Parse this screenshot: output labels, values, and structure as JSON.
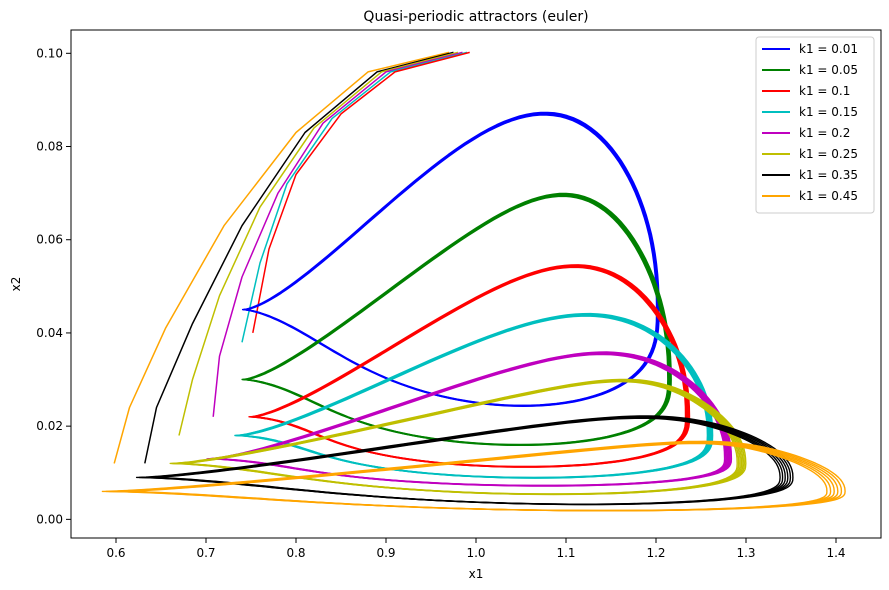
{
  "chart_data": {
    "type": "line",
    "title": "Quasi-periodic attractors (euler)",
    "xlabel": "x1",
    "ylabel": "x2",
    "xlim": [
      0.55,
      1.45
    ],
    "ylim": [
      -0.004,
      0.105
    ],
    "xticks": [
      0.6,
      0.7,
      0.8,
      0.9,
      1.0,
      1.1,
      1.2,
      1.3,
      1.4
    ],
    "xtick_labels": [
      "0.6",
      "0.7",
      "0.8",
      "0.9",
      "1.0",
      "1.1",
      "1.2",
      "1.3",
      "1.4"
    ],
    "yticks": [
      0.0,
      0.02,
      0.04,
      0.06,
      0.08,
      0.1
    ],
    "ytick_labels": [
      "0.00",
      "0.02",
      "0.04",
      "0.06",
      "0.08",
      "0.10"
    ],
    "grid": false,
    "legend": "top-right",
    "series": [
      {
        "name": "k1 = 0.01",
        "color": "#0000ff",
        "k": 0.01,
        "xmin": 0.742,
        "xmax": 1.202,
        "ymin": 0.02,
        "ymax": 0.097,
        "xtop": 0.985,
        "xbot": 0.94,
        "ytip": 0.045,
        "loops": 6,
        "spread": 0.012
      },
      {
        "name": "k1 = 0.05",
        "color": "#008000",
        "k": 0.05,
        "xmin": 0.742,
        "xmax": 1.215,
        "ymin": 0.013,
        "ymax": 0.079,
        "xtop": 1.005,
        "xbot": 0.93,
        "ytip": 0.03,
        "loops": 6,
        "spread": 0.016
      },
      {
        "name": "k1 = 0.1",
        "color": "#ff0000",
        "k": 0.1,
        "xmin": 0.75,
        "xmax": 1.235,
        "ymin": 0.009,
        "ymax": 0.062,
        "xtop": 1.015,
        "xbot": 0.93,
        "ytip": 0.022,
        "loops": 7,
        "spread": 0.018
      },
      {
        "name": "k1 = 0.15",
        "color": "#00bfbf",
        "k": 0.15,
        "xmin": 0.735,
        "xmax": 1.26,
        "ymin": 0.007,
        "ymax": 0.05,
        "xtop": 1.02,
        "xbot": 0.93,
        "ytip": 0.018,
        "loops": 7,
        "spread": 0.022
      },
      {
        "name": "k1 = 0.2",
        "color": "#bf00bf",
        "k": 0.2,
        "xmin": 0.705,
        "xmax": 1.28,
        "ymin": 0.006,
        "ymax": 0.041,
        "xtop": 1.03,
        "xbot": 0.93,
        "ytip": 0.013,
        "loops": 7,
        "spread": 0.026
      },
      {
        "name": "k1 = 0.25",
        "color": "#bfbf00",
        "k": 0.25,
        "xmin": 0.665,
        "xmax": 1.295,
        "ymin": 0.004,
        "ymax": 0.034,
        "xtop": 1.045,
        "xbot": 0.93,
        "ytip": 0.012,
        "loops": 7,
        "spread": 0.03
      },
      {
        "name": "k1 = 0.35",
        "color": "#000000",
        "k": 0.35,
        "xmin": 0.63,
        "xmax": 1.345,
        "ymin": 0.002,
        "ymax": 0.025,
        "xtop": 1.05,
        "xbot": 0.95,
        "ytip": 0.009,
        "loops": 6,
        "spread": 0.04
      },
      {
        "name": "k1 = 0.45",
        "color": "#ffa500",
        "k": 0.45,
        "xmin": 0.595,
        "xmax": 1.4,
        "ymin": 0.001,
        "ymax": 0.019,
        "xtop": 1.1,
        "xbot": 0.95,
        "ytip": 0.006,
        "loops": 6,
        "spread": 0.05
      }
    ],
    "transient": [
      {
        "color": "#ffa500",
        "points": [
          [
            0.97,
            0.1002
          ],
          [
            0.88,
            0.096
          ],
          [
            0.8,
            0.083
          ],
          [
            0.72,
            0.063
          ],
          [
            0.655,
            0.041
          ],
          [
            0.615,
            0.024
          ],
          [
            0.598,
            0.012
          ]
        ]
      },
      {
        "color": "#000000",
        "points": [
          [
            0.975,
            0.1002
          ],
          [
            0.89,
            0.096
          ],
          [
            0.81,
            0.083
          ],
          [
            0.74,
            0.063
          ],
          [
            0.685,
            0.042
          ],
          [
            0.645,
            0.024
          ],
          [
            0.632,
            0.012
          ]
        ]
      },
      {
        "color": "#bfbf00",
        "points": [
          [
            0.98,
            0.1002
          ],
          [
            0.895,
            0.096
          ],
          [
            0.82,
            0.084
          ],
          [
            0.76,
            0.067
          ],
          [
            0.715,
            0.048
          ],
          [
            0.685,
            0.03
          ],
          [
            0.67,
            0.018
          ]
        ]
      },
      {
        "color": "#bf00bf",
        "points": [
          [
            0.985,
            0.1002
          ],
          [
            0.9,
            0.096
          ],
          [
            0.83,
            0.085
          ],
          [
            0.78,
            0.07
          ],
          [
            0.74,
            0.052
          ],
          [
            0.715,
            0.035
          ],
          [
            0.708,
            0.022
          ]
        ]
      },
      {
        "color": "#00bfbf",
        "points": [
          [
            0.99,
            0.1002
          ],
          [
            0.905,
            0.096
          ],
          [
            0.84,
            0.086
          ],
          [
            0.79,
            0.072
          ],
          [
            0.76,
            0.055
          ],
          [
            0.74,
            0.038
          ]
        ]
      },
      {
        "color": "#ff0000",
        "points": [
          [
            0.993,
            0.1002
          ],
          [
            0.91,
            0.096
          ],
          [
            0.85,
            0.087
          ],
          [
            0.8,
            0.074
          ],
          [
            0.77,
            0.058
          ],
          [
            0.752,
            0.04
          ]
        ]
      }
    ]
  }
}
